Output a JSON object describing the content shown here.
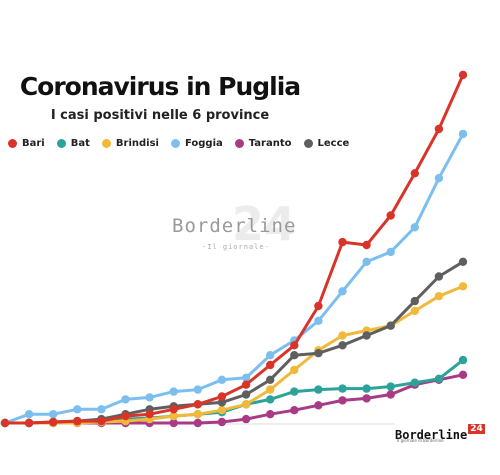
{
  "chart_data": {
    "type": "line",
    "title": "Coronavirus in Puglia",
    "subtitle": "I casi positivi nelle 6 province",
    "legend_position": "top-left",
    "grid": false,
    "x": [
      1,
      2,
      3,
      4,
      5,
      6,
      7,
      8,
      9,
      10,
      11,
      12,
      13,
      14,
      15,
      16,
      17,
      18,
      19,
      20
    ],
    "ylim": [
      0,
      360
    ],
    "series": [
      {
        "name": "Bari",
        "color": "#d8342a",
        "values": [
          1,
          1,
          2,
          3,
          3,
          8,
          10,
          15,
          20,
          28,
          40,
          60,
          80,
          120,
          185,
          182,
          212,
          255,
          300,
          355
        ]
      },
      {
        "name": "Bat",
        "color": "#2ba39a",
        "values": [
          1,
          1,
          1,
          2,
          2,
          5,
          6,
          8,
          10,
          12,
          20,
          25,
          33,
          35,
          36,
          36,
          38,
          42,
          46,
          65
        ]
      },
      {
        "name": "Brindisi",
        "color": "#f0b93a",
        "values": [
          1,
          1,
          1,
          1,
          2,
          3,
          5,
          8,
          10,
          14,
          20,
          35,
          55,
          75,
          90,
          95,
          100,
          115,
          130,
          140
        ]
      },
      {
        "name": "Foggia",
        "color": "#7cbfee",
        "values": [
          1,
          10,
          10,
          15,
          15,
          25,
          27,
          33,
          35,
          45,
          47,
          70,
          85,
          105,
          135,
          165,
          175,
          200,
          250,
          295
        ]
      },
      {
        "name": "Taranto",
        "color": "#a83a86",
        "values": [
          1,
          1,
          1,
          1,
          1,
          1,
          1,
          1,
          1,
          2,
          5,
          10,
          14,
          19,
          24,
          26,
          30,
          40,
          45,
          50
        ]
      },
      {
        "name": "Lecce",
        "color": "#5f5f5f",
        "values": [
          1,
          1,
          2,
          3,
          5,
          10,
          15,
          18,
          20,
          22,
          30,
          45,
          70,
          72,
          80,
          90,
          100,
          125,
          150,
          165
        ]
      }
    ]
  },
  "watermark": {
    "name": "Borderline",
    "number": "24",
    "tagline": "-Il giornale-"
  },
  "logo": {
    "name": "Borderline",
    "number": "24",
    "tagline": "Il giornale di Borderline"
  }
}
